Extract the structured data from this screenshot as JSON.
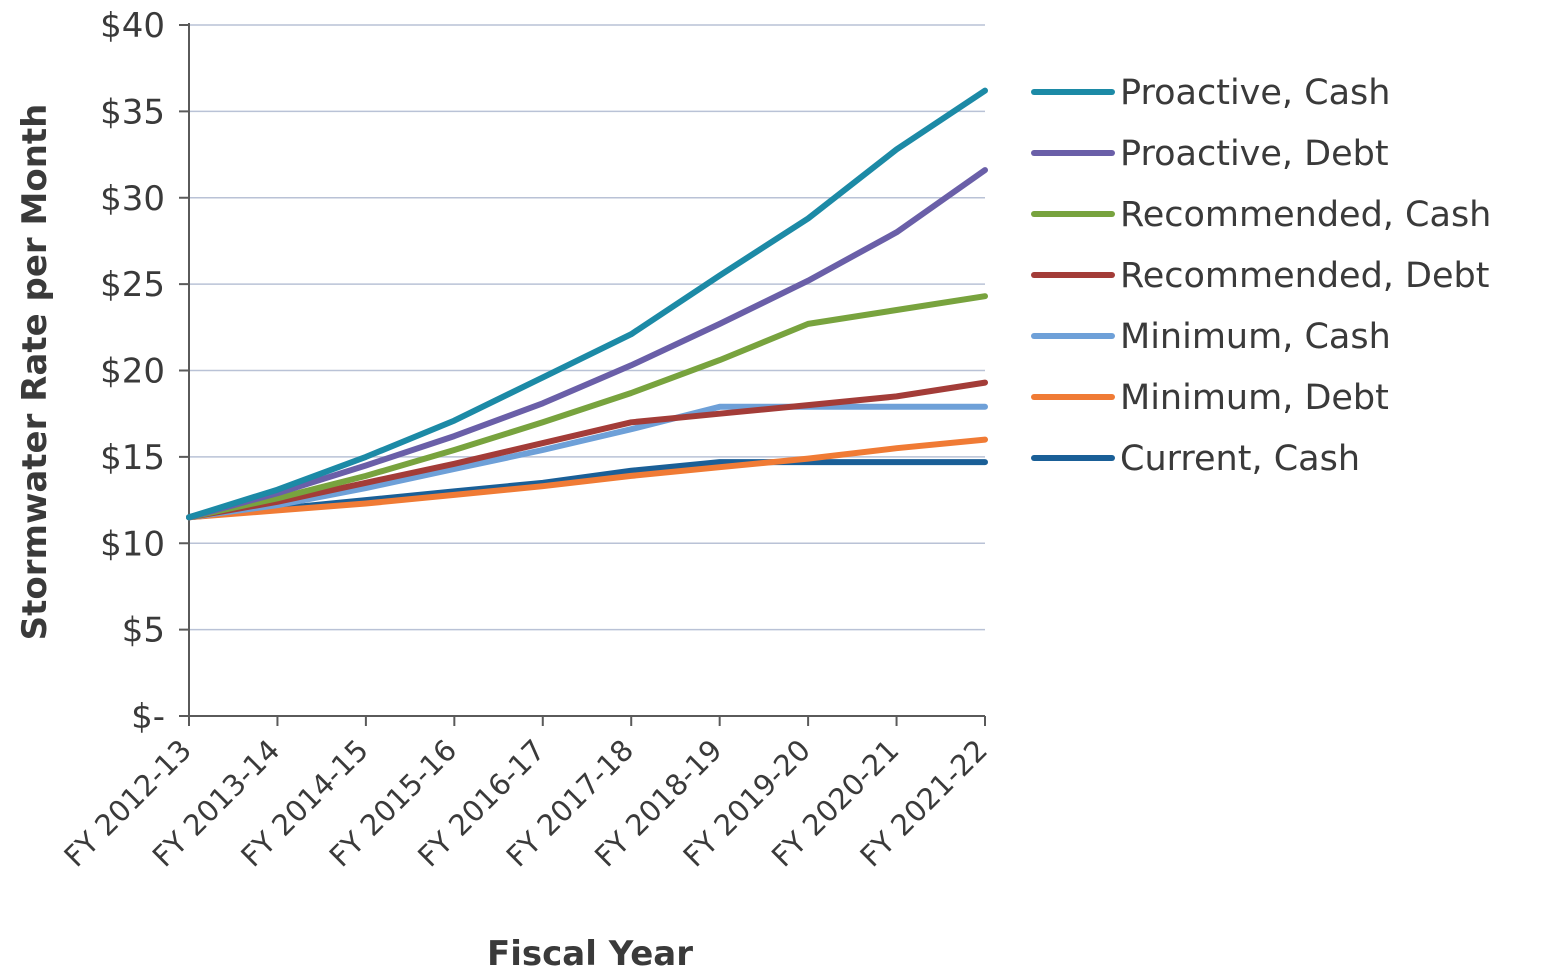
{
  "chart_data": {
    "type": "line",
    "title": "",
    "xlabel": "Fiscal Year",
    "ylabel": "Stormwater Rate per Month",
    "categories": [
      "FY 2012-13",
      "FY 2013-14",
      "FY 2014-15",
      "FY 2015-16",
      "FY 2016-17",
      "FY 2017-18",
      "FY 2018-19",
      "FY 2019-20",
      "FY 2020-21",
      "FY 2021-22"
    ],
    "ylim": [
      0,
      40
    ],
    "y_ticks": [
      0,
      5,
      10,
      15,
      20,
      25,
      30,
      35,
      40
    ],
    "y_tick_labels": [
      "$-",
      "$5",
      "$10",
      "$15",
      "$20",
      "$25",
      "$30",
      "$35",
      "$40"
    ],
    "grid": true,
    "legend_position": "right",
    "series": [
      {
        "name": "Proactive, Cash",
        "color": "#1c8aa6",
        "values": [
          11.5,
          13.1,
          15.0,
          17.1,
          19.6,
          22.1,
          25.5,
          28.8,
          32.8,
          36.2
        ]
      },
      {
        "name": "Proactive, Debt",
        "color": "#6a5fa8",
        "values": [
          11.5,
          12.9,
          14.5,
          16.2,
          18.1,
          20.3,
          22.7,
          25.2,
          28.0,
          31.6
        ]
      },
      {
        "name": "Recommended,  Cash",
        "color": "#78a33e",
        "values": [
          11.5,
          12.6,
          13.9,
          15.4,
          17.0,
          18.7,
          20.6,
          22.7,
          23.5,
          24.3
        ]
      },
      {
        "name": "Recommended,  Debt",
        "color": "#a33c38",
        "values": [
          11.5,
          12.4,
          13.5,
          14.6,
          15.8,
          17.0,
          17.5,
          18.0,
          18.5,
          19.3
        ]
      },
      {
        "name": "Minimum, Cash",
        "color": "#6ea0d8",
        "values": [
          11.5,
          12.2,
          13.2,
          14.3,
          15.4,
          16.6,
          17.9,
          17.9,
          17.9,
          17.9
        ]
      },
      {
        "name": "Minimum, Debt",
        "color": "#f07b35",
        "values": [
          11.5,
          11.9,
          12.3,
          12.8,
          13.3,
          13.9,
          14.4,
          14.9,
          15.5,
          16.0
        ]
      },
      {
        "name": "Current, Cash",
        "color": "#1a5f97",
        "values": [
          11.5,
          12.0,
          12.5,
          13.0,
          13.5,
          14.2,
          14.7,
          14.7,
          14.7,
          14.7
        ]
      }
    ]
  }
}
